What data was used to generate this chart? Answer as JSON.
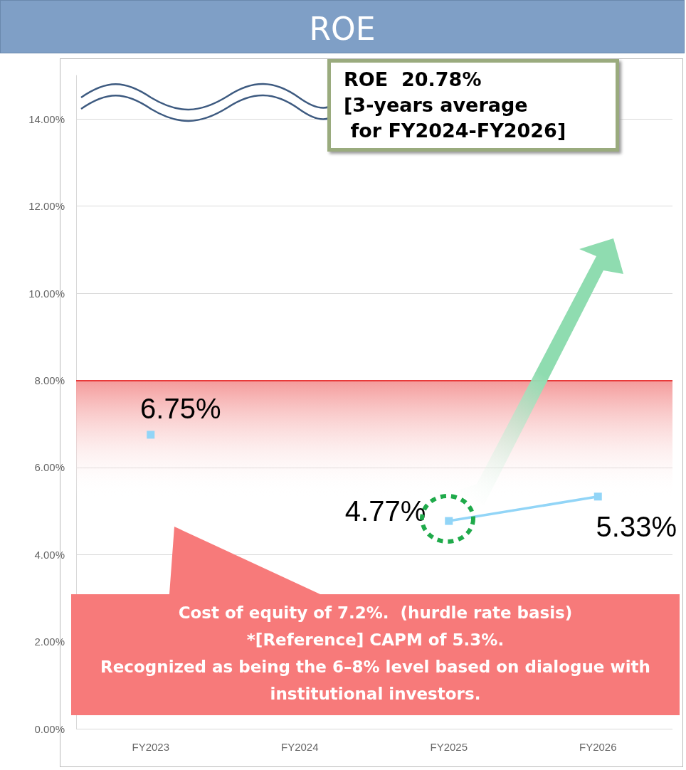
{
  "chart_data": {
    "type": "line",
    "title": "ROE",
    "categories": [
      "FY2023",
      "FY2024",
      "FY2025",
      "FY2026"
    ],
    "series": [
      {
        "color": "#92d5f7",
        "values": [
          6.75,
          null,
          4.77,
          5.33
        ]
      }
    ],
    "value_labels": [
      "6.75%",
      null,
      "4.77%",
      "5.33%"
    ],
    "ylim": [
      0,
      15
    ],
    "yticks": [
      {
        "value": 0,
        "label": "0.00%"
      },
      {
        "value": 2,
        "label": "2.00%"
      },
      {
        "value": 4,
        "label": "4.00%"
      },
      {
        "value": 6,
        "label": "6.00%"
      },
      {
        "value": 8,
        "label": "8.00%"
      },
      {
        "value": 10,
        "label": "10.00%"
      },
      {
        "value": 12,
        "label": "12.00%"
      },
      {
        "value": 14,
        "label": "14.00%"
      }
    ],
    "grid": "y",
    "marker": "square",
    "line_style": "solid",
    "bands": [
      {
        "axis": "y",
        "from": 5.3,
        "to": 8,
        "color": "#f49a9a"
      }
    ],
    "ref_lines": [
      {
        "axis": "y",
        "value": 8,
        "color": "#e83a3a"
      }
    ],
    "annotations": [
      "ROE  20.78%\n[3-years average\n for FY2024-FY2026]",
      "Cost of equity of 7.2%.  (hurdle rate basis)\n*[Reference] CAPM of 5.3%.\nRecognized as being the 6–8% level based on dialogue with\ninstitutional investors."
    ]
  }
}
